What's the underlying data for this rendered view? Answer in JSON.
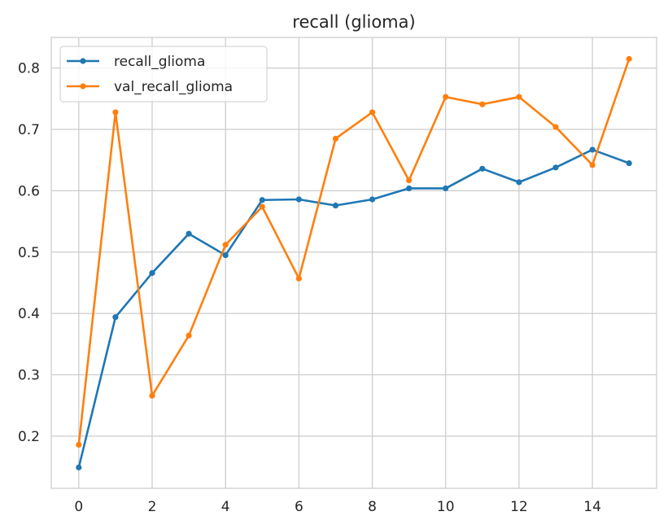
{
  "chart_data": {
    "type": "line",
    "title": "recall (glioma)",
    "xlabel": "",
    "ylabel": "",
    "x": [
      0,
      1,
      2,
      3,
      4,
      5,
      6,
      7,
      8,
      9,
      10,
      11,
      12,
      13,
      14,
      15
    ],
    "xlim": [
      -0.75,
      15.75
    ],
    "ylim": [
      0.115,
      0.85
    ],
    "xticks": [
      0,
      2,
      4,
      6,
      8,
      10,
      12,
      14
    ],
    "yticks": [
      0.2,
      0.3,
      0.4,
      0.5,
      0.6,
      0.7,
      0.8
    ],
    "grid": true,
    "legend_position": "top-left",
    "series": [
      {
        "name": "recall_glioma",
        "color": "#1f77b4",
        "marker": "circle",
        "values": [
          0.149,
          0.394,
          0.466,
          0.53,
          0.495,
          0.585,
          0.586,
          0.576,
          0.586,
          0.604,
          0.604,
          0.636,
          0.614,
          0.638,
          0.667,
          0.645
        ]
      },
      {
        "name": "val_recall_glioma",
        "color": "#ff7f0e",
        "marker": "circle",
        "values": [
          0.186,
          0.728,
          0.266,
          0.364,
          0.512,
          0.574,
          0.457,
          0.685,
          0.728,
          0.617,
          0.753,
          0.741,
          0.753,
          0.704,
          0.642,
          0.815
        ]
      }
    ]
  }
}
